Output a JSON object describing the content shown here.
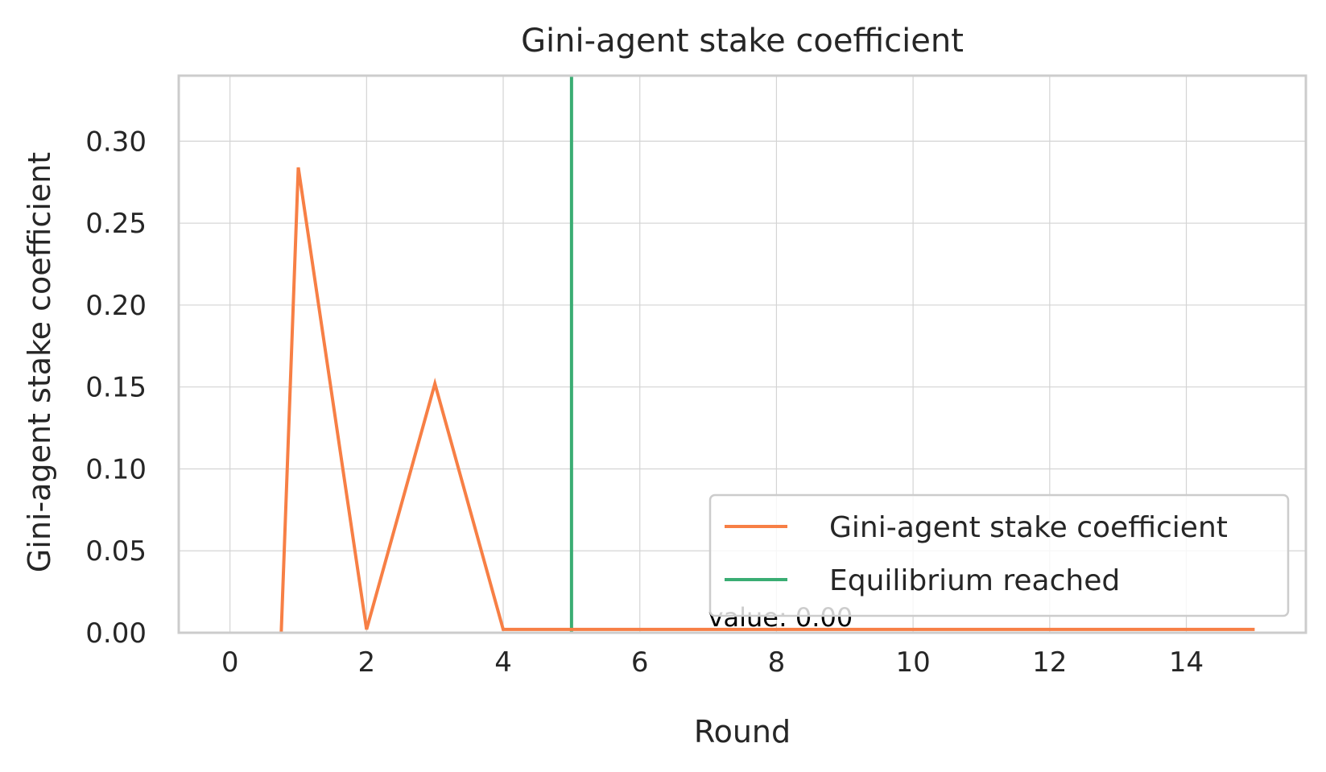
{
  "chart_data": {
    "type": "line",
    "title": "Gini-agent stake coefficient",
    "xlabel": "Round",
    "ylabel": "Gini-agent stake coefficient",
    "xlim": [
      -0.75,
      15.75
    ],
    "ylim": [
      0.0,
      0.34
    ],
    "xticks": [
      0,
      2,
      4,
      6,
      8,
      10,
      12,
      14
    ],
    "xtick_labels": [
      "0",
      "2",
      "4",
      "6",
      "8",
      "10",
      "12",
      "14"
    ],
    "yticks": [
      0.0,
      0.05,
      0.1,
      0.15,
      0.2,
      0.25,
      0.3
    ],
    "ytick_labels": [
      "0.00",
      "0.05",
      "0.10",
      "0.15",
      "0.20",
      "0.25",
      "0.30"
    ],
    "grid": true,
    "legend_position": "lower right",
    "series": [
      {
        "name": "Gini-agent stake coefficient",
        "color": "#f77f45",
        "x": [
          0.75,
          1,
          2,
          3,
          4,
          5,
          6,
          7,
          8,
          9,
          10,
          11,
          12,
          13,
          14,
          15
        ],
        "y": [
          0.0,
          0.284,
          0.002,
          0.152,
          0.002,
          0.002,
          0.002,
          0.002,
          0.002,
          0.002,
          0.002,
          0.002,
          0.002,
          0.002,
          0.002,
          0.002
        ]
      }
    ],
    "vlines": [
      {
        "name": "Equilibrium reached",
        "x": 5,
        "color": "#3aad73"
      }
    ],
    "annotations": [
      {
        "text": "value: 0.00",
        "x": 7.0,
        "y": 0.002
      }
    ]
  }
}
